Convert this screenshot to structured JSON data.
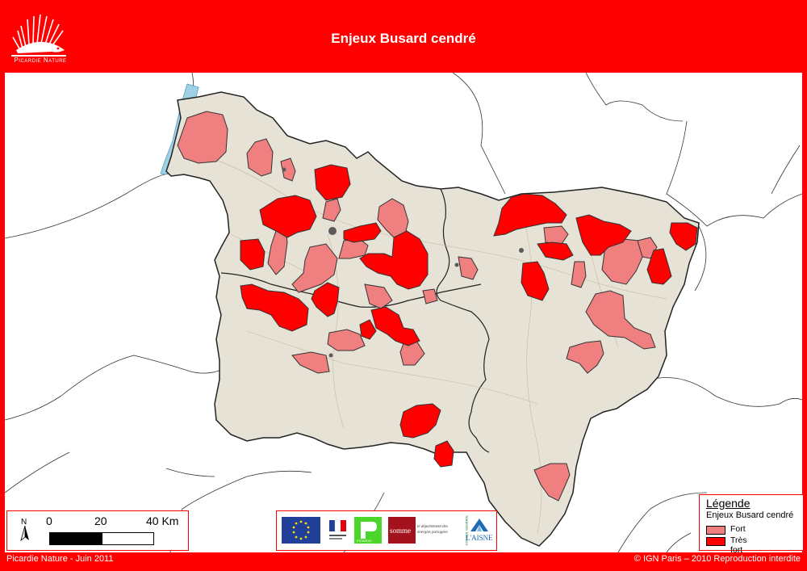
{
  "header": {
    "title": "Enjeux Busard cendré",
    "logo_text": "Picardie Nature"
  },
  "colors": {
    "frame": "#ff0000",
    "fort": "#f08080",
    "tres_fort": "#ff0000",
    "region_fill": "#e6e2d6",
    "outline": "#222222",
    "sea": "#9fd0e6"
  },
  "scale": {
    "labels": [
      "0",
      "20",
      "40 Km"
    ],
    "north_label": "N"
  },
  "legend": {
    "title": "Légende",
    "subtitle": "Enjeux Busard cendré",
    "items": [
      {
        "label": "Fort",
        "color": "#f08080"
      },
      {
        "label": "Très fort",
        "color": "#ff0000"
      }
    ]
  },
  "partners": {
    "somme_name": "somme",
    "somme_slogan": "le département des énergies partagées",
    "aisne_name": "L'AISNE",
    "aisne_side": "CONSEIL GÉNÉRAL",
    "picardie_name": "PICARDIE"
  },
  "footer": {
    "left": "Picardie Nature - Juin 2011",
    "right": "© IGN Paris – 2010 Reproduction interdite"
  }
}
